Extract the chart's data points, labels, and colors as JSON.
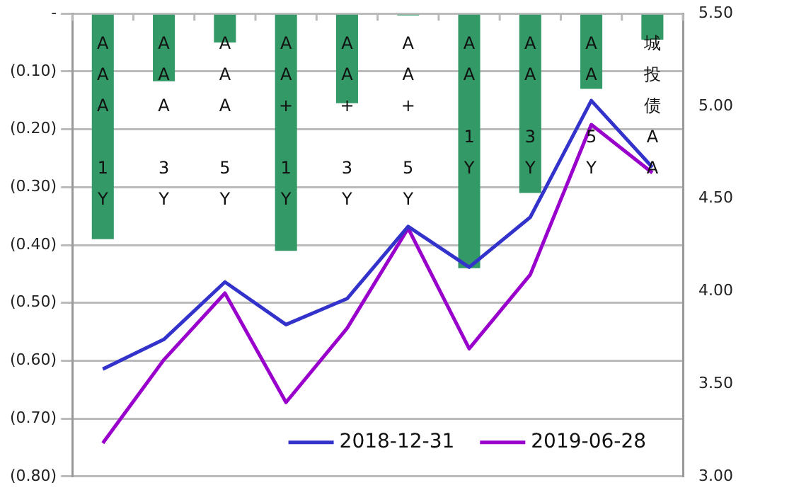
{
  "chart_data": {
    "type": "bar",
    "categories": [
      "AAA 1Y",
      "AAA 3Y",
      "AAA 5Y",
      "AA+ 1Y",
      "AA+ 3Y",
      "AA+ 5Y",
      "AA 1Y",
      "AA 3Y",
      "AA 5Y",
      "城投债AA"
    ],
    "series": [
      {
        "color": "#339966",
        "values": [
          -0.39,
          -0.117,
          -0.05,
          -0.41,
          -0.155,
          -0.003,
          -0.44,
          -0.31,
          -0.13,
          -0.045
        ]
      },
      {
        "type": "line",
        "axis": "y2",
        "name": "2018-12-31",
        "color": "#3333cc",
        "values": [
          3.58,
          3.74,
          4.05,
          3.82,
          3.96,
          4.35,
          4.13,
          4.4,
          5.03,
          4.67
        ]
      },
      {
        "type": "line",
        "axis": "y2",
        "name": "2019-06-28",
        "color": "#9900cc",
        "values": [
          3.18,
          3.63,
          3.99,
          3.4,
          3.8,
          4.34,
          3.69,
          4.09,
          4.9,
          4.64
        ]
      }
    ],
    "ylim": [
      -0.8,
      0
    ],
    "yticks": [
      {
        "value": 0,
        "label": "-"
      },
      {
        "value": -0.1,
        "label": "(0.10)"
      },
      {
        "value": -0.2,
        "label": "(0.20)"
      },
      {
        "value": -0.3,
        "label": "(0.30)"
      },
      {
        "value": -0.4,
        "label": "(0.40)"
      },
      {
        "value": -0.5,
        "label": "(0.50)"
      },
      {
        "value": -0.6,
        "label": "(0.60)"
      },
      {
        "value": -0.7,
        "label": "(0.70)"
      },
      {
        "value": -0.8,
        "label": "(0.80)"
      }
    ],
    "y2lim": [
      3,
      5.5
    ],
    "y2ticks": [
      {
        "value": 3,
        "label": "3.00"
      },
      {
        "value": 3.5,
        "label": "3.50"
      },
      {
        "value": 4,
        "label": "4.00"
      },
      {
        "value": 4.5,
        "label": "4.50"
      },
      {
        "value": 5,
        "label": "5.00"
      },
      {
        "value": 5.5,
        "label": "5.50"
      }
    ],
    "grid": "y",
    "legend": "bottom right",
    "marker": "none",
    "line_style": "solid"
  }
}
